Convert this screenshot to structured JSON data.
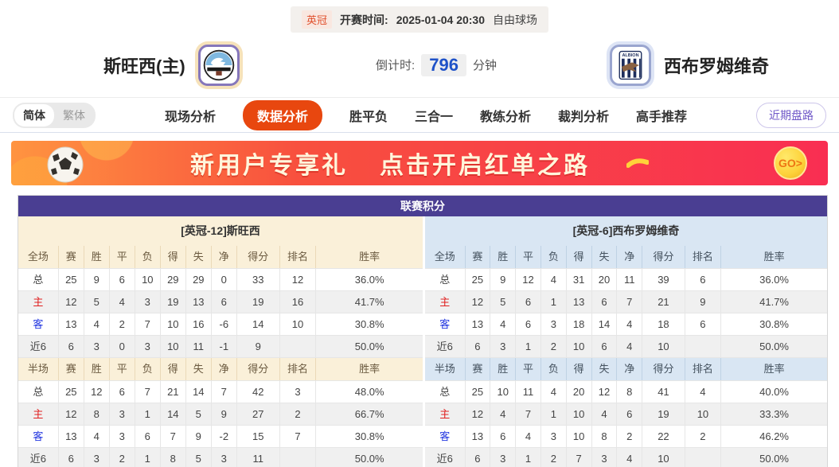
{
  "top_bar": {
    "league": "英冠",
    "kickoff_label": "开赛时间:",
    "kickoff_time": "2025-01-04 20:30",
    "venue": "自由球场"
  },
  "header": {
    "home_team": "斯旺西(主)",
    "away_team": "西布罗姆维奇",
    "away_badge_text": "ALBION",
    "countdown_label": "倒计时:",
    "countdown_value": "796",
    "countdown_unit": "分钟"
  },
  "nav": {
    "langs": [
      {
        "label": "简体",
        "active": true
      },
      {
        "label": "繁体",
        "active": false
      }
    ],
    "tabs": [
      {
        "label": "现场分析",
        "active": false
      },
      {
        "label": "数据分析",
        "active": true
      },
      {
        "label": "胜平负",
        "active": false
      },
      {
        "label": "三合一",
        "active": false
      },
      {
        "label": "教练分析",
        "active": false
      },
      {
        "label": "裁判分析",
        "active": false
      },
      {
        "label": "高手推荐",
        "active": false
      }
    ],
    "recent_trends": "近期盘路"
  },
  "banner": {
    "title_left": "新用户专享礼",
    "title_right": "点击开启红单之路",
    "go_label": "GO>"
  },
  "standings": {
    "title": "联赛积分",
    "columns": [
      "赛",
      "胜",
      "平",
      "负",
      "得",
      "失",
      "净",
      "得分",
      "排名",
      "胜率"
    ],
    "halves": [
      {
        "side": "home",
        "header": "[英冠-12]斯旺西",
        "sections": [
          {
            "label": "全场",
            "rows": [
              {
                "name": "总",
                "type": "total",
                "values": [
                  "25",
                  "9",
                  "6",
                  "10",
                  "29",
                  "29",
                  "0",
                  "33",
                  "12",
                  "36.0%"
                ]
              },
              {
                "name": "主",
                "type": "home",
                "values": [
                  "12",
                  "5",
                  "4",
                  "3",
                  "19",
                  "13",
                  "6",
                  "19",
                  "16",
                  "41.7%"
                ]
              },
              {
                "name": "客",
                "type": "away",
                "values": [
                  "13",
                  "4",
                  "2",
                  "7",
                  "10",
                  "16",
                  "-6",
                  "14",
                  "10",
                  "30.8%"
                ]
              },
              {
                "name": "近6",
                "type": "recent",
                "values": [
                  "6",
                  "3",
                  "0",
                  "3",
                  "10",
                  "11",
                  "-1",
                  "9",
                  "",
                  "50.0%"
                ]
              }
            ]
          },
          {
            "label": "半场",
            "rows": [
              {
                "name": "总",
                "type": "total",
                "values": [
                  "25",
                  "12",
                  "6",
                  "7",
                  "21",
                  "14",
                  "7",
                  "42",
                  "3",
                  "48.0%"
                ]
              },
              {
                "name": "主",
                "type": "home",
                "values": [
                  "12",
                  "8",
                  "3",
                  "1",
                  "14",
                  "5",
                  "9",
                  "27",
                  "2",
                  "66.7%"
                ]
              },
              {
                "name": "客",
                "type": "away",
                "values": [
                  "13",
                  "4",
                  "3",
                  "6",
                  "7",
                  "9",
                  "-2",
                  "15",
                  "7",
                  "30.8%"
                ]
              },
              {
                "name": "近6",
                "type": "recent",
                "values": [
                  "6",
                  "3",
                  "2",
                  "1",
                  "8",
                  "5",
                  "3",
                  "11",
                  "",
                  "50.0%"
                ]
              }
            ]
          }
        ]
      },
      {
        "side": "away",
        "header": "[英冠-6]西布罗姆维奇",
        "sections": [
          {
            "label": "全场",
            "rows": [
              {
                "name": "总",
                "type": "total",
                "values": [
                  "25",
                  "9",
                  "12",
                  "4",
                  "31",
                  "20",
                  "11",
                  "39",
                  "6",
                  "36.0%"
                ]
              },
              {
                "name": "主",
                "type": "home",
                "values": [
                  "12",
                  "5",
                  "6",
                  "1",
                  "13",
                  "6",
                  "7",
                  "21",
                  "9",
                  "41.7%"
                ]
              },
              {
                "name": "客",
                "type": "away",
                "values": [
                  "13",
                  "4",
                  "6",
                  "3",
                  "18",
                  "14",
                  "4",
                  "18",
                  "6",
                  "30.8%"
                ]
              },
              {
                "name": "近6",
                "type": "recent",
                "values": [
                  "6",
                  "3",
                  "1",
                  "2",
                  "10",
                  "6",
                  "4",
                  "10",
                  "",
                  "50.0%"
                ]
              }
            ]
          },
          {
            "label": "半场",
            "rows": [
              {
                "name": "总",
                "type": "total",
                "values": [
                  "25",
                  "10",
                  "11",
                  "4",
                  "20",
                  "12",
                  "8",
                  "41",
                  "4",
                  "40.0%"
                ]
              },
              {
                "name": "主",
                "type": "home",
                "values": [
                  "12",
                  "4",
                  "7",
                  "1",
                  "10",
                  "4",
                  "6",
                  "19",
                  "10",
                  "33.3%"
                ]
              },
              {
                "name": "客",
                "type": "away",
                "values": [
                  "13",
                  "6",
                  "4",
                  "3",
                  "10",
                  "8",
                  "2",
                  "22",
                  "2",
                  "46.2%"
                ]
              },
              {
                "name": "近6",
                "type": "recent",
                "values": [
                  "6",
                  "3",
                  "1",
                  "2",
                  "7",
                  "3",
                  "4",
                  "10",
                  "",
                  "50.0%"
                ]
              }
            ]
          }
        ]
      }
    ]
  },
  "colors": {
    "accent_tab": "#e8470f",
    "standings_header": "#4a3e92",
    "home_panel": "#faf0d9",
    "away_panel": "#d9e6f3",
    "home_label": "#e01f1f",
    "away_label": "#2135e0",
    "countdown_blue": "#1f52c8",
    "banner_red": "#f92e52"
  }
}
